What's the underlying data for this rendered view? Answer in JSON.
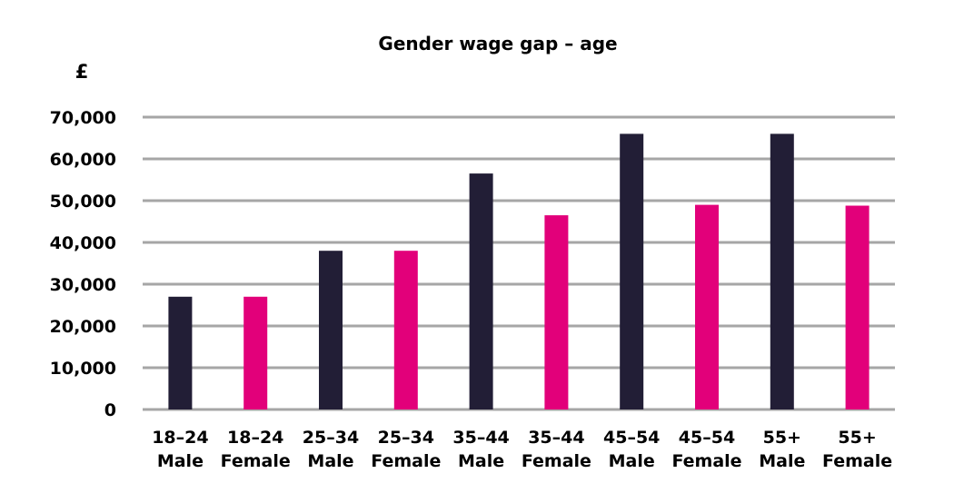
{
  "chart_data": {
    "type": "bar",
    "title": "Gender wage gap – age",
    "ylabel": "£",
    "xlabel": "",
    "ylim": [
      0,
      70000
    ],
    "yticks": [
      0,
      10000,
      20000,
      30000,
      40000,
      50000,
      60000,
      70000
    ],
    "ytick_labels": [
      "0",
      "10,000",
      "20,000",
      "30,000",
      "40,000",
      "50,000",
      "60,000",
      "70,000"
    ],
    "grid": true,
    "legend": "none",
    "categories": [
      [
        "18–24",
        "Male"
      ],
      [
        "18–24",
        "Female"
      ],
      [
        "25–34",
        "Male"
      ],
      [
        "25–34",
        "Female"
      ],
      [
        "35–44",
        "Male"
      ],
      [
        "35–44",
        "Female"
      ],
      [
        "45–54",
        "Male"
      ],
      [
        "45–54",
        "Female"
      ],
      [
        "55+",
        "Male"
      ],
      [
        "55+",
        "Female"
      ]
    ],
    "values": [
      27000,
      27000,
      38000,
      38000,
      56500,
      46500,
      66000,
      49000,
      66000,
      48800
    ],
    "colors": {
      "male": "#221e36",
      "female": "#e2007a",
      "grid": "#a6a6a6"
    },
    "bar_colors": [
      "#221e36",
      "#e2007a",
      "#221e36",
      "#e2007a",
      "#221e36",
      "#e2007a",
      "#221e36",
      "#e2007a",
      "#221e36",
      "#e2007a"
    ]
  }
}
